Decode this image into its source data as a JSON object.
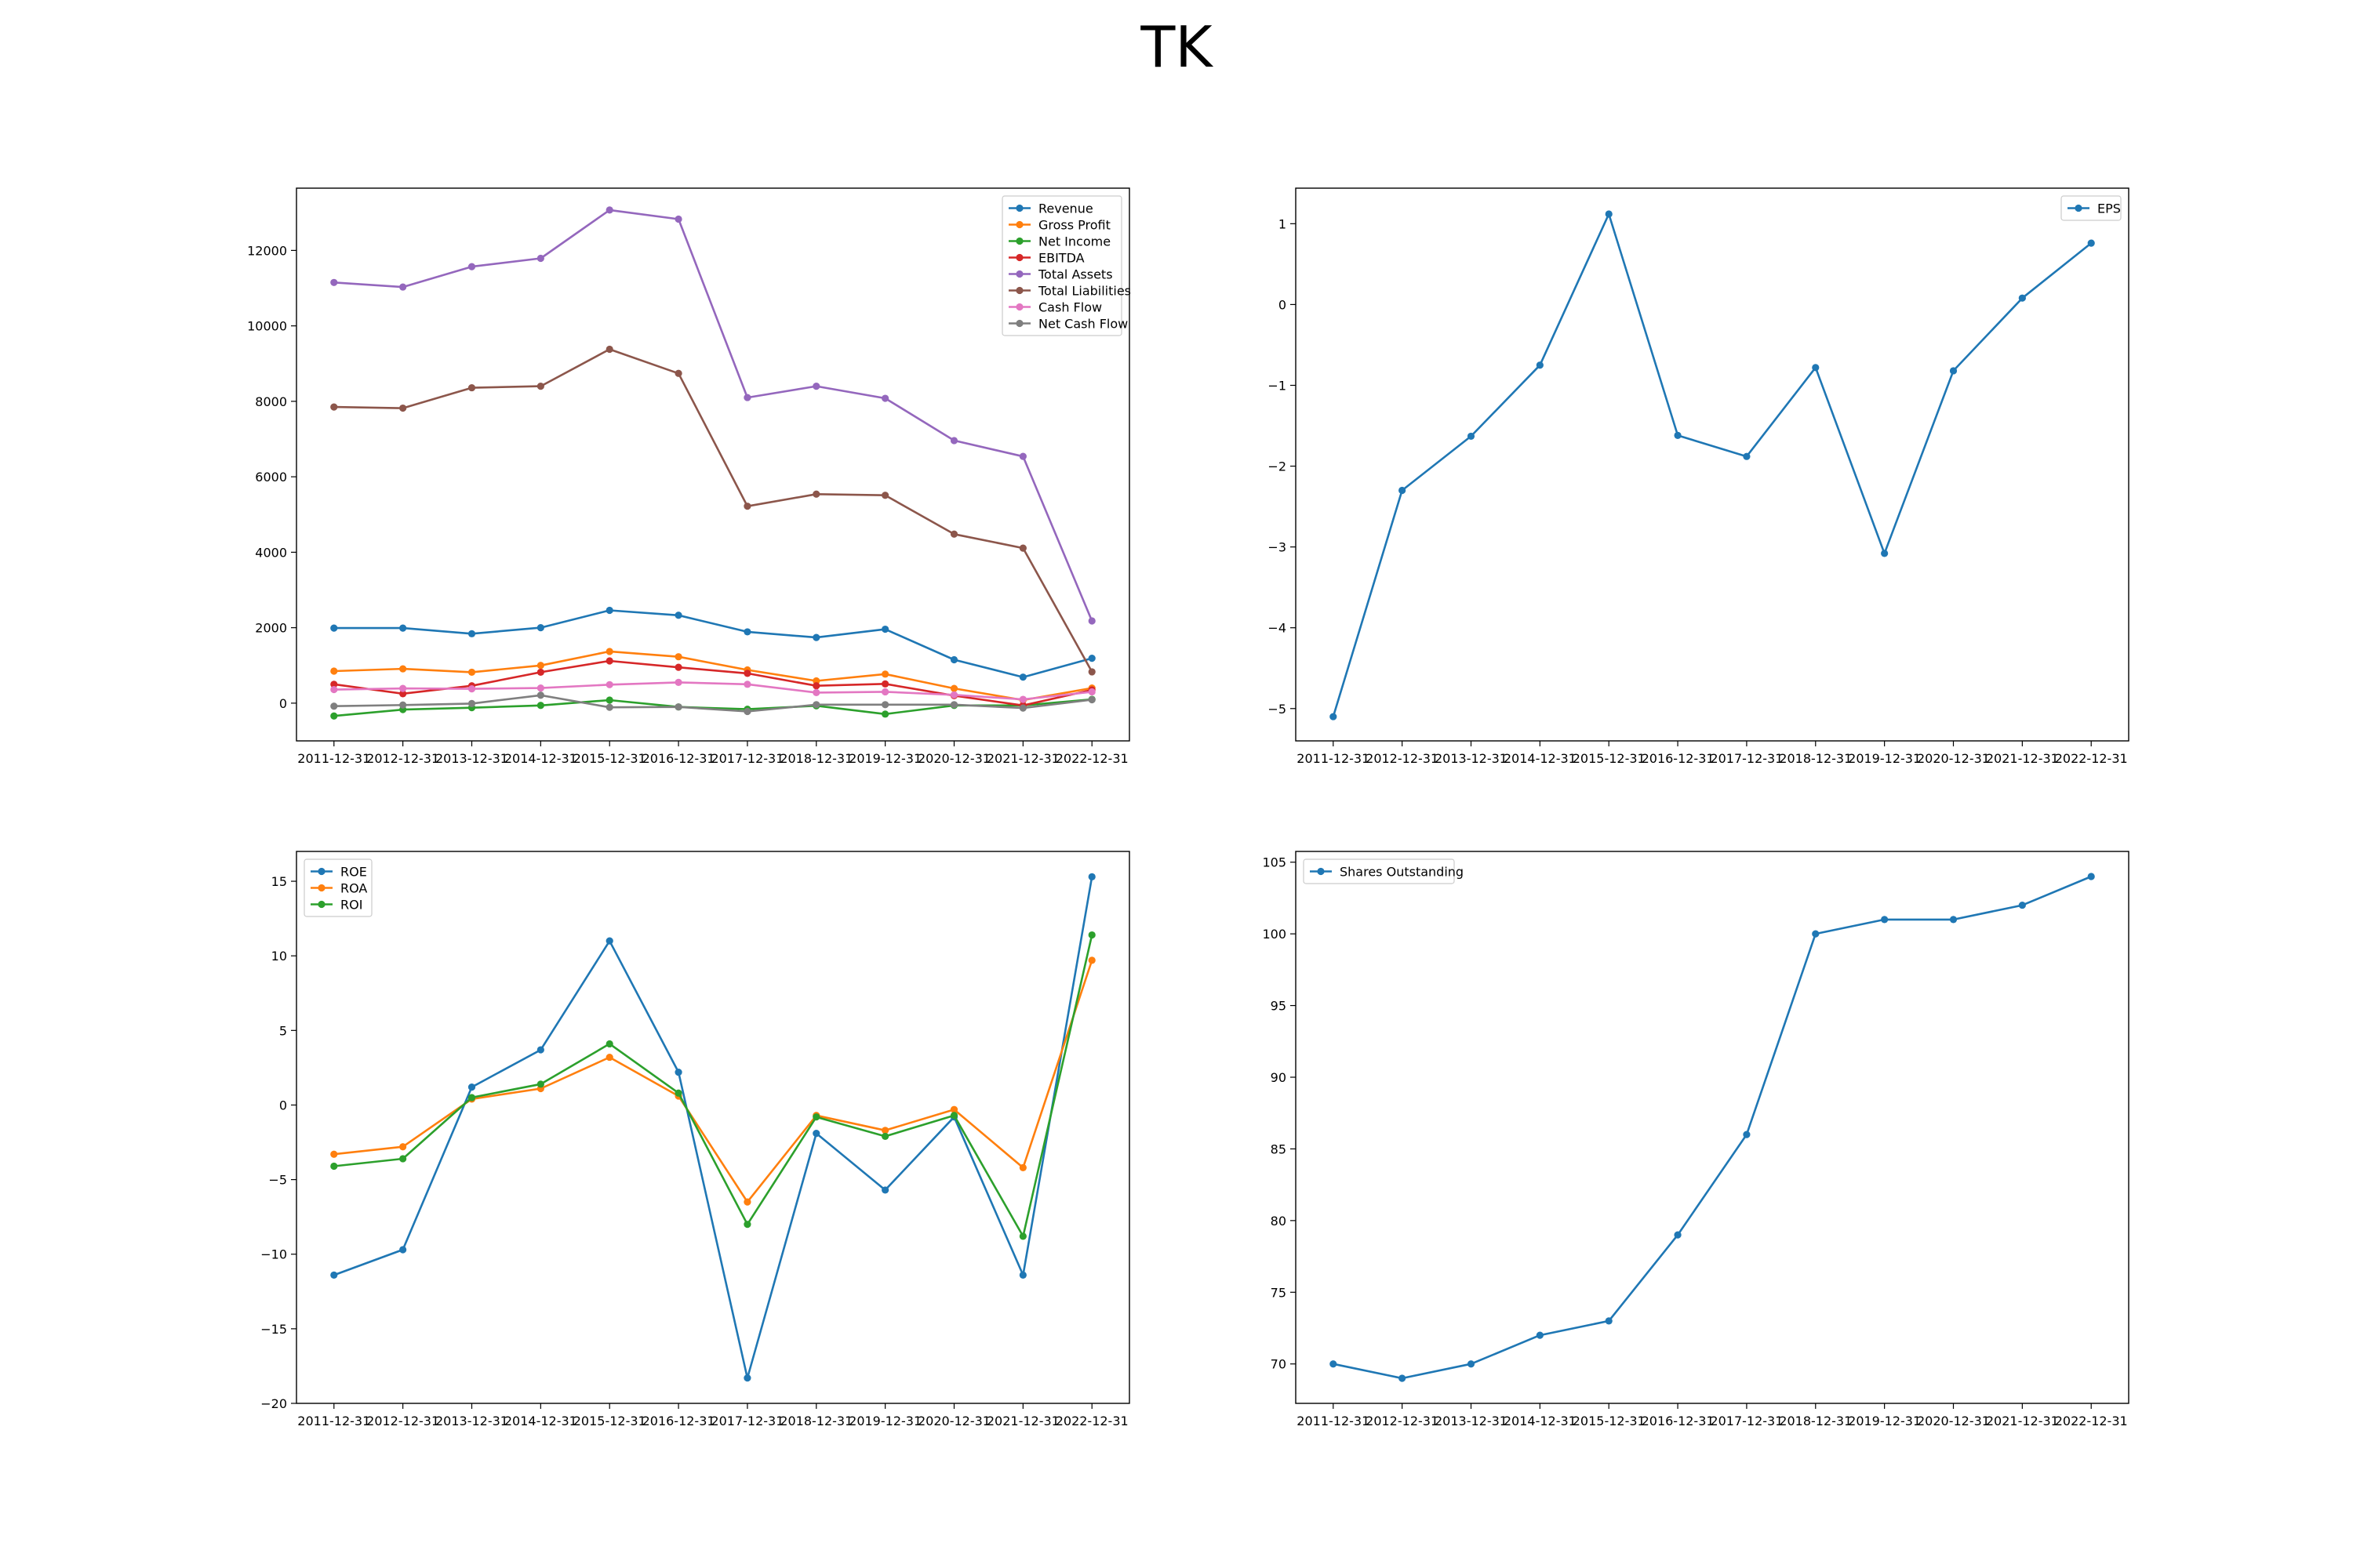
{
  "figure": {
    "title": "TK"
  },
  "chart_data": [
    {
      "type": "line",
      "title": "",
      "xlabel": "",
      "ylabel": "",
      "categories": [
        "2011-12-31",
        "2012-12-31",
        "2013-12-31",
        "2014-12-31",
        "2015-12-31",
        "2016-12-31",
        "2017-12-31",
        "2018-12-31",
        "2019-12-31",
        "2020-12-31",
        "2021-12-31",
        "2022-12-31"
      ],
      "ylim": [
        -1000,
        13650
      ],
      "yticks": [
        0,
        2000,
        4000,
        6000,
        8000,
        10000,
        12000
      ],
      "legend": "top-right",
      "grid": false,
      "series": [
        {
          "name": "Revenue",
          "color": "#1f77b4",
          "values": [
            1990,
            1990,
            1840,
            2000,
            2460,
            2330,
            1890,
            1740,
            1960,
            1150,
            690,
            1190
          ]
        },
        {
          "name": "Gross Profit",
          "color": "#ff7f0e",
          "values": [
            850,
            910,
            820,
            1000,
            1370,
            1230,
            880,
            590,
            770,
            390,
            80,
            400
          ]
        },
        {
          "name": "Net Income",
          "color": "#2ca02c",
          "values": [
            -340,
            -170,
            -120,
            -60,
            80,
            -100,
            -160,
            -70,
            -290,
            -60,
            -60,
            100
          ]
        },
        {
          "name": "EBITDA",
          "color": "#d62728",
          "values": [
            500,
            250,
            460,
            820,
            1120,
            950,
            790,
            460,
            510,
            200,
            -60,
            350
          ]
        },
        {
          "name": "Total Assets",
          "color": "#9467bd",
          "values": [
            11150,
            11030,
            11570,
            11790,
            13070,
            12830,
            8100,
            8400,
            8080,
            6960,
            6540,
            2180
          ]
        },
        {
          "name": "Total Liabilities",
          "color": "#8c564b",
          "values": [
            7850,
            7820,
            8360,
            8400,
            9380,
            8740,
            5220,
            5540,
            5510,
            4480,
            4110,
            830
          ]
        },
        {
          "name": "Cash Flow",
          "color": "#e377c2",
          "values": [
            360,
            390,
            380,
            400,
            490,
            550,
            500,
            280,
            300,
            220,
            100,
            300
          ]
        },
        {
          "name": "Net Cash Flow",
          "color": "#7f7f7f",
          "values": [
            -80,
            -50,
            -10,
            210,
            -110,
            -100,
            -220,
            -40,
            -40,
            -40,
            -130,
            90
          ]
        }
      ]
    },
    {
      "type": "line",
      "title": "",
      "xlabel": "",
      "ylabel": "",
      "categories": [
        "2011-12-31",
        "2012-12-31",
        "2013-12-31",
        "2014-12-31",
        "2015-12-31",
        "2016-12-31",
        "2017-12-31",
        "2018-12-31",
        "2019-12-31",
        "2020-12-31",
        "2021-12-31",
        "2022-12-31"
      ],
      "ylim": [
        -5.4,
        1.44
      ],
      "yticks": [
        -5,
        -4,
        -3,
        -2,
        -1,
        0,
        1
      ],
      "legend": "top-right",
      "grid": false,
      "series": [
        {
          "name": "EPS",
          "color": "#1f77b4",
          "values": [
            -5.1,
            -2.3,
            -1.63,
            -0.75,
            1.12,
            -1.62,
            -1.88,
            -0.78,
            -3.08,
            -0.82,
            0.08,
            0.76
          ]
        }
      ]
    },
    {
      "type": "line",
      "title": "",
      "xlabel": "",
      "ylabel": "",
      "categories": [
        "2011-12-31",
        "2012-12-31",
        "2013-12-31",
        "2014-12-31",
        "2015-12-31",
        "2016-12-31",
        "2017-12-31",
        "2018-12-31",
        "2019-12-31",
        "2020-12-31",
        "2021-12-31",
        "2022-12-31"
      ],
      "ylim": [
        -20,
        17
      ],
      "yticks": [
        -20,
        -15,
        -10,
        -5,
        0,
        5,
        10,
        15
      ],
      "legend": "top-left",
      "grid": false,
      "series": [
        {
          "name": "ROE",
          "color": "#1f77b4",
          "values": [
            -11.4,
            -9.7,
            1.2,
            3.7,
            11.0,
            2.2,
            -18.3,
            -1.9,
            -5.7,
            -0.8,
            -11.4,
            15.3
          ]
        },
        {
          "name": "ROA",
          "color": "#ff7f0e",
          "values": [
            -3.3,
            -2.8,
            0.4,
            1.1,
            3.2,
            0.6,
            -6.5,
            -0.7,
            -1.7,
            -0.3,
            -4.2,
            9.7
          ]
        },
        {
          "name": "ROI",
          "color": "#2ca02c",
          "values": [
            -4.1,
            -3.6,
            0.5,
            1.4,
            4.1,
            0.8,
            -8.0,
            -0.8,
            -2.1,
            -0.7,
            -8.8,
            11.4
          ]
        }
      ]
    },
    {
      "type": "line",
      "title": "",
      "xlabel": "",
      "ylabel": "",
      "categories": [
        "2011-12-31",
        "2012-12-31",
        "2013-12-31",
        "2014-12-31",
        "2015-12-31",
        "2016-12-31",
        "2017-12-31",
        "2018-12-31",
        "2019-12-31",
        "2020-12-31",
        "2021-12-31",
        "2022-12-31"
      ],
      "ylim": [
        67.25,
        105.75
      ],
      "yticks": [
        70,
        75,
        80,
        85,
        90,
        95,
        100,
        105
      ],
      "legend": "top-left",
      "grid": false,
      "series": [
        {
          "name": "Shares Outstanding",
          "color": "#1f77b4",
          "values": [
            70,
            69,
            70,
            72,
            73,
            79,
            86,
            100,
            101,
            101,
            102,
            104
          ]
        }
      ]
    }
  ]
}
